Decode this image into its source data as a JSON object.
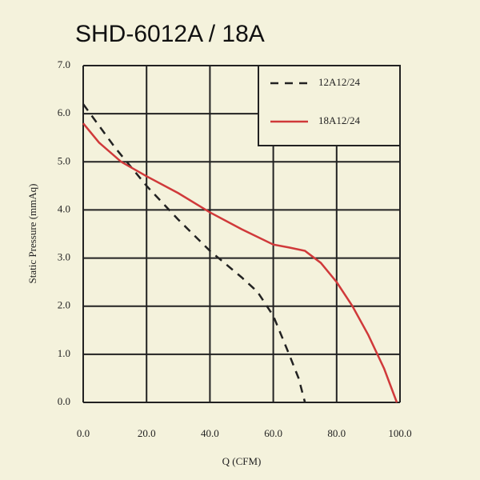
{
  "chart_data": {
    "type": "line",
    "title": "SHD-6012A / 18A",
    "x_label": "Q (CFM)",
    "y_label": "Static Pressure (mmAq)",
    "xlim": [
      0,
      100
    ],
    "ylim": [
      0,
      7
    ],
    "xticks": [
      {
        "value": 0,
        "label": "0.0"
      },
      {
        "value": 20,
        "label": "20.0"
      },
      {
        "value": 40,
        "label": "40.0"
      },
      {
        "value": 60,
        "label": "60.0"
      },
      {
        "value": 80,
        "label": "80.0"
      },
      {
        "value": 100,
        "label": "100.0"
      }
    ],
    "yticks": [
      {
        "value": 0,
        "label": "0.0"
      },
      {
        "value": 1,
        "label": "1.0"
      },
      {
        "value": 2,
        "label": "2.0"
      },
      {
        "value": 3,
        "label": "3.0"
      },
      {
        "value": 4,
        "label": "4.0"
      },
      {
        "value": 5,
        "label": "5.0"
      },
      {
        "value": 6,
        "label": "6.0"
      },
      {
        "value": 7,
        "label": "7.0"
      }
    ],
    "grid": true,
    "legend": "upper right",
    "series": [
      {
        "name": "12A12/24",
        "color": "#222222",
        "dash": true,
        "x": [
          0,
          10,
          20,
          30,
          40,
          50,
          55,
          60,
          65,
          68,
          70
        ],
        "values": [
          6.2,
          5.3,
          4.5,
          3.8,
          3.15,
          2.6,
          2.3,
          1.8,
          1.0,
          0.5,
          0
        ]
      },
      {
        "name": "18A12/24",
        "color": "#d0393a",
        "dash": false,
        "x": [
          0,
          5,
          12,
          20,
          30,
          40,
          50,
          60,
          65,
          70,
          75,
          80,
          85,
          90,
          95,
          99
        ],
        "values": [
          5.8,
          5.4,
          5.0,
          4.7,
          4.35,
          3.95,
          3.6,
          3.28,
          3.22,
          3.15,
          2.9,
          2.5,
          2.0,
          1.4,
          0.7,
          0
        ]
      }
    ]
  }
}
